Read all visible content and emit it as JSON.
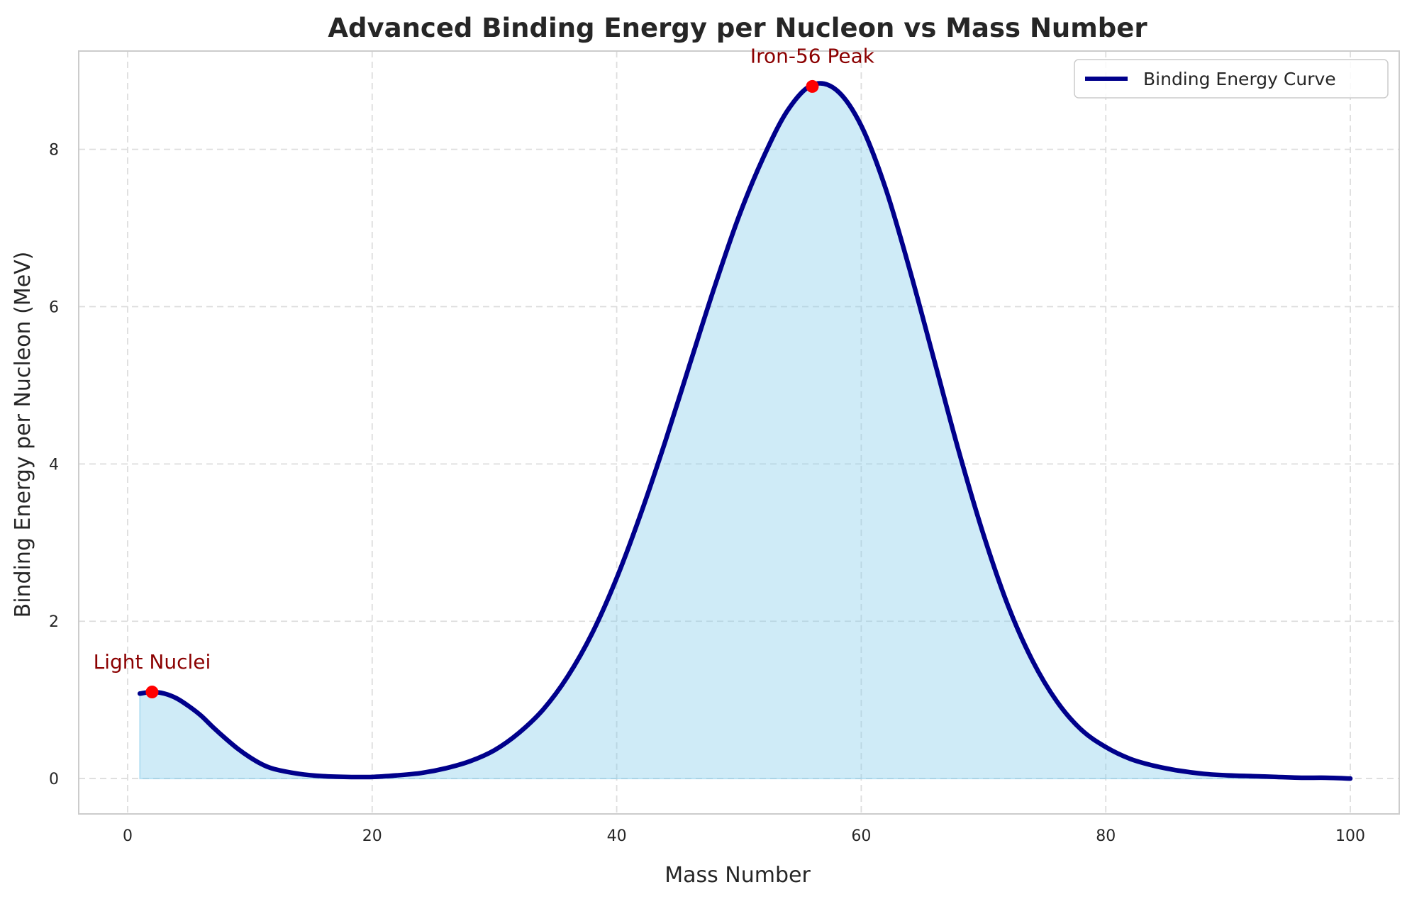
{
  "chart_data": {
    "type": "line",
    "title": "Advanced Binding Energy per Nucleon vs Mass Number",
    "xlabel": "Mass Number",
    "ylabel": "Binding Energy per Nucleon (MeV)",
    "xlim": [
      -4,
      104
    ],
    "ylim": [
      -0.45,
      9.25
    ],
    "xticks": [
      0,
      20,
      40,
      60,
      80,
      100
    ],
    "yticks": [
      0,
      2,
      4,
      6,
      8
    ],
    "grid": true,
    "legend_position": "top-right",
    "series": [
      {
        "name": "Binding Energy Curve",
        "color": "#00008b",
        "fill_color": "#87ceeb",
        "x": [
          1,
          2,
          3,
          4,
          5,
          6,
          7,
          8,
          9,
          10,
          11,
          12,
          14,
          16,
          18,
          20,
          22,
          24,
          26,
          28,
          30,
          32,
          34,
          36,
          38,
          40,
          42,
          44,
          46,
          48,
          50,
          52,
          54,
          56,
          58,
          60,
          62,
          64,
          66,
          68,
          70,
          72,
          74,
          76,
          78,
          80,
          82,
          84,
          86,
          88,
          90,
          92,
          94,
          96,
          98,
          100
        ],
        "y": [
          1.08,
          1.1,
          1.08,
          1.02,
          0.92,
          0.8,
          0.65,
          0.51,
          0.38,
          0.27,
          0.18,
          0.12,
          0.06,
          0.03,
          0.02,
          0.02,
          0.04,
          0.07,
          0.13,
          0.22,
          0.36,
          0.58,
          0.88,
          1.3,
          1.85,
          2.55,
          3.38,
          4.3,
          5.28,
          6.25,
          7.15,
          7.9,
          8.5,
          8.82,
          8.75,
          8.3,
          7.5,
          6.45,
          5.3,
          4.15,
          3.1,
          2.2,
          1.5,
          0.98,
          0.62,
          0.4,
          0.25,
          0.16,
          0.1,
          0.06,
          0.04,
          0.03,
          0.02,
          0.01,
          0.01,
          0.0
        ]
      }
    ],
    "markers": [
      {
        "x": 2,
        "y": 1.1,
        "color": "#ff0000"
      },
      {
        "x": 56,
        "y": 8.8,
        "color": "#ff0000"
      }
    ],
    "annotations": [
      {
        "text": "Light Nuclei",
        "x": 2,
        "y": 1.4,
        "color": "#8b0000"
      },
      {
        "text": "Iron-56 Peak",
        "x": 56,
        "y": 9.1,
        "color": "#8b0000"
      }
    ]
  }
}
